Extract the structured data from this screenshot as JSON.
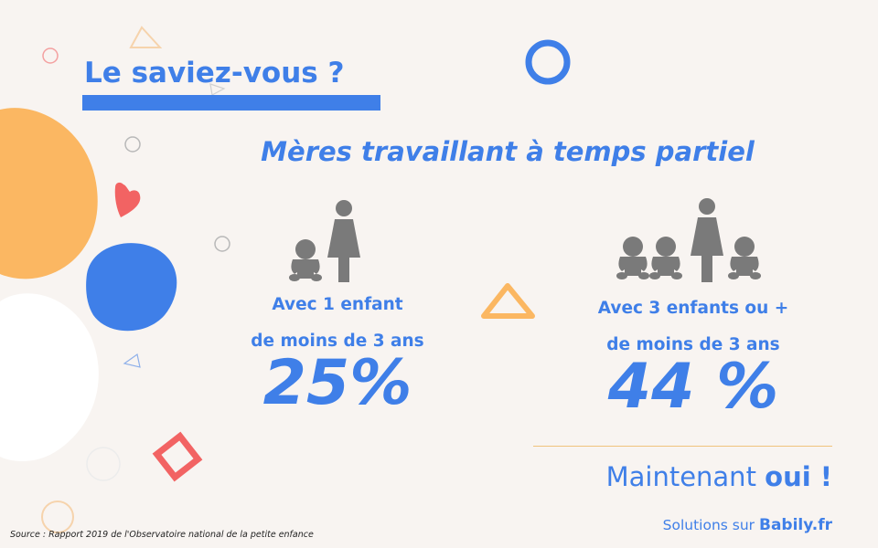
{
  "heading": "Le saviez-vous ?",
  "subheading": "Mères travaillant à temps partiel",
  "stats": [
    {
      "line1": "Avec 1 enfant",
      "line2": "de moins de 3 ans",
      "value": "25%"
    },
    {
      "line1": "Avec 3 enfants ou +",
      "line2": "de moins de 3 ans",
      "value": "44 %"
    }
  ],
  "tagline": {
    "normal": "Maintenant ",
    "bold": "oui !"
  },
  "solutions": {
    "prefix": "Solutions sur ",
    "brand": "Babily.fr"
  },
  "source": "Source : Rapport 2019 de l'Observatoire national de la petite enfance",
  "icons": [
    "baby-icon",
    "mother-icon"
  ],
  "colors": {
    "blue": "#3f7fe8",
    "orange": "#fbb762",
    "coral": "#f26363",
    "grey": "#7a7a7a",
    "background": "#f8f4f1"
  }
}
